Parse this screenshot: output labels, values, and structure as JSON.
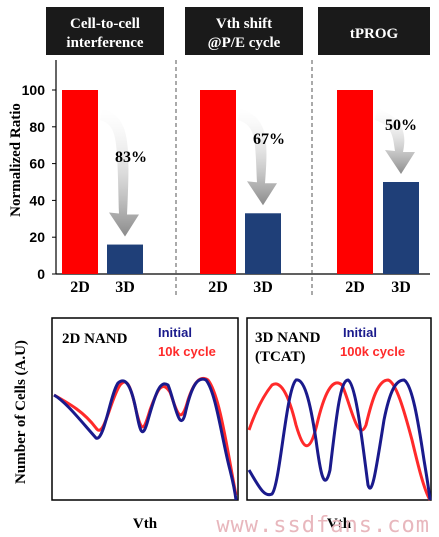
{
  "colors": {
    "bar_2d": "#ff0000",
    "bar_3d": "#1f3f78",
    "initial": "#1a1a8c",
    "cycled": "#ff2a2a",
    "header_bg": "#1a1a1a",
    "arrow": "#8a8a8a",
    "watermark": "#e8b7bd"
  },
  "chart_data": [
    {
      "type": "bar",
      "ylabel": "Normalized Ratio",
      "ylim": [
        0,
        100
      ],
      "yticks": [
        "0",
        "20",
        "40",
        "60",
        "80",
        "100"
      ],
      "categories": [
        "2D",
        "3D"
      ],
      "panels": [
        {
          "title_lines": [
            "Cell-to-cell",
            "interference"
          ],
          "values": [
            100,
            16
          ],
          "reduction_label": "83%"
        },
        {
          "title_lines": [
            "Vth shift",
            "@P/E cycle"
          ],
          "values": [
            100,
            33
          ],
          "reduction_label": "67%"
        },
        {
          "title_lines": [
            "tPROG"
          ],
          "values": [
            100,
            50
          ],
          "reduction_label": "50%"
        }
      ]
    },
    {
      "type": "line",
      "ylabel": "Number of Cells (A.U)",
      "xlabel": "Vth",
      "panels": [
        {
          "title_lines": [
            "2D NAND"
          ],
          "legend": [
            "Initial",
            "10k cycle"
          ]
        },
        {
          "title_lines": [
            "3D NAND",
            "(TCAT)"
          ],
          "legend": [
            "Initial",
            "100k cycle"
          ]
        }
      ]
    }
  ],
  "watermark": "www.ssdfans.com"
}
